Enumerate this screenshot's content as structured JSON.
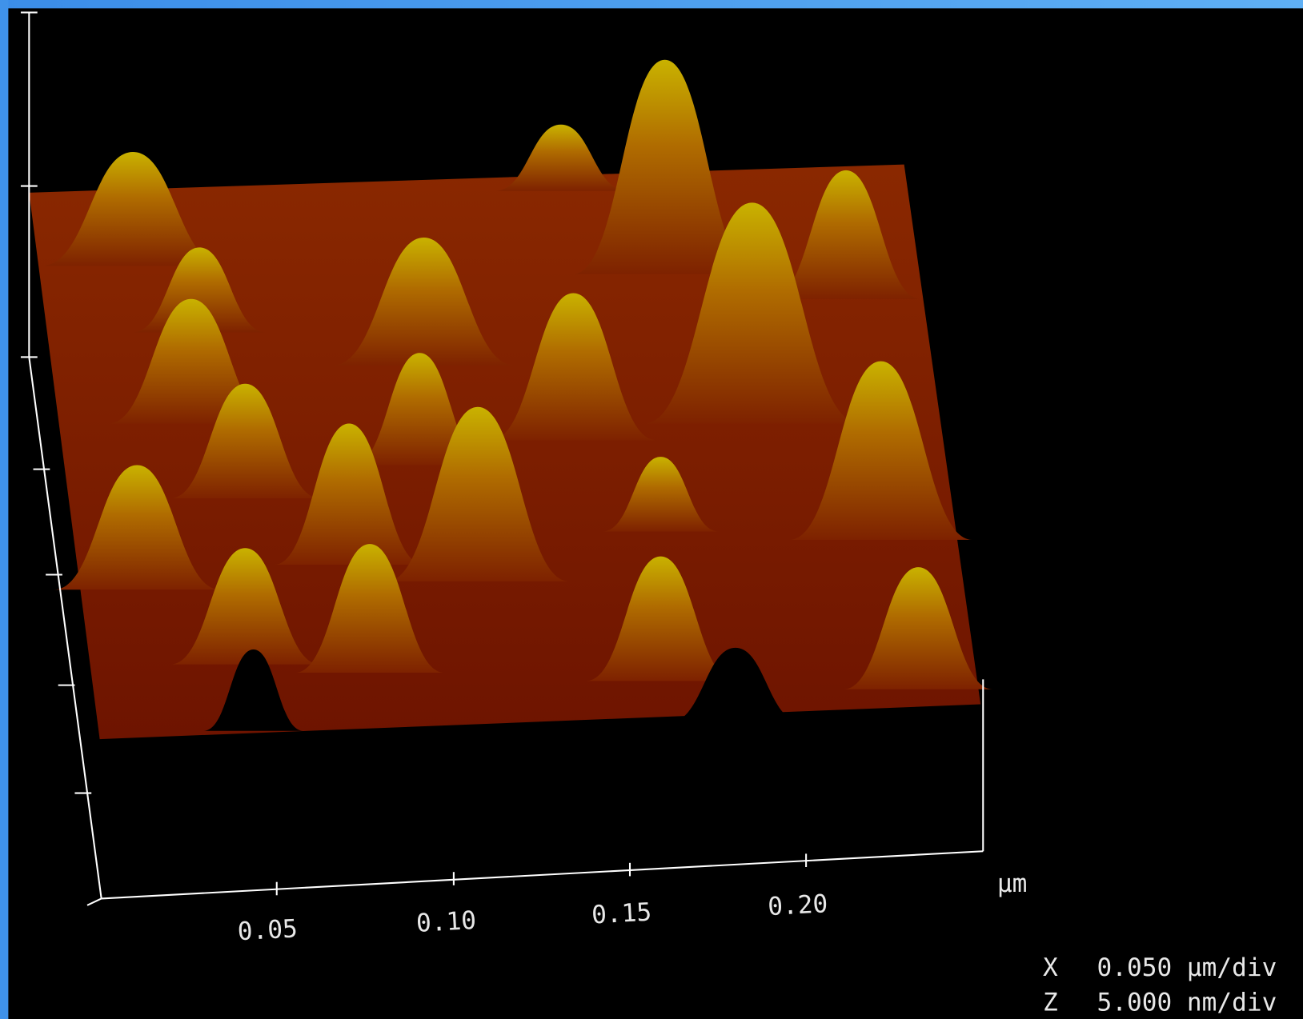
{
  "x_axis": {
    "ticks": [
      "0.05",
      "0.10",
      "0.15",
      "0.20"
    ],
    "unit": "µm"
  },
  "scale": [
    {
      "axis": "X",
      "value": "0.050 µm/div"
    },
    {
      "axis": "Z",
      "value": "5.000 nm/div"
    }
  ]
}
